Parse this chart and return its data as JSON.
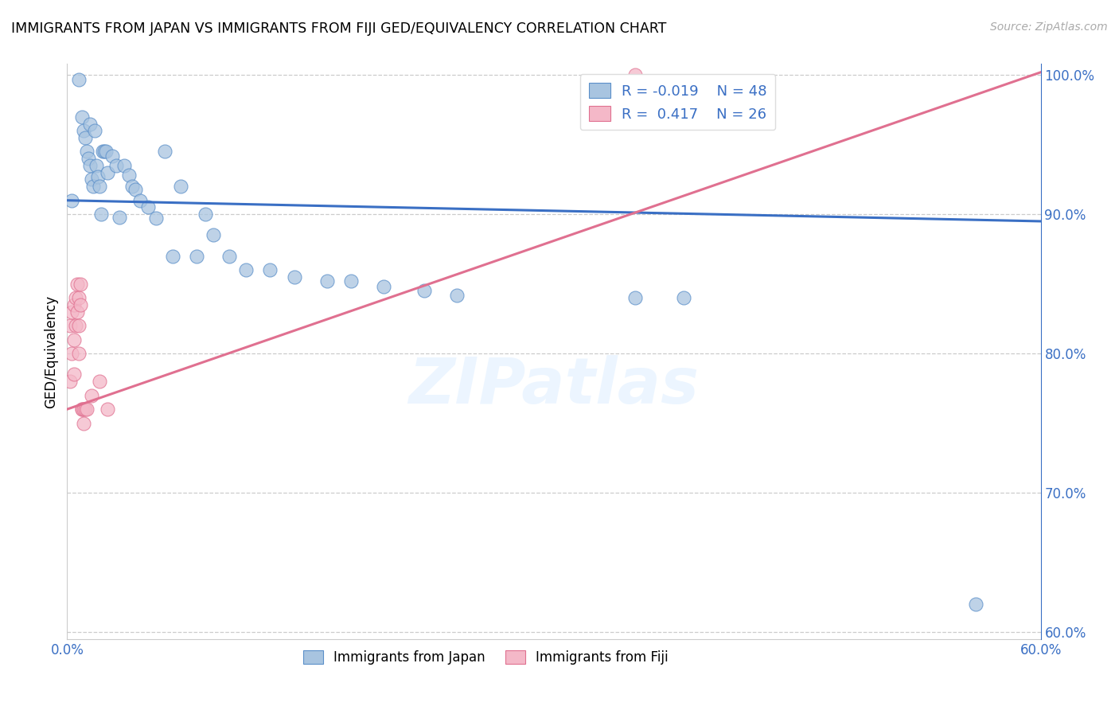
{
  "title": "IMMIGRANTS FROM JAPAN VS IMMIGRANTS FROM FIJI GED/EQUIVALENCY CORRELATION CHART",
  "source": "Source: ZipAtlas.com",
  "ylabel": "GED/Equivalency",
  "xlim": [
    0.0,
    0.6
  ],
  "ylim": [
    0.595,
    1.008
  ],
  "yticks_right": [
    0.6,
    0.7,
    0.8,
    0.9,
    1.0
  ],
  "ytick_right_labels": [
    "60.0%",
    "70.0%",
    "80.0%",
    "90.0%",
    "100.0%"
  ],
  "legend_R_japan": "-0.019",
  "legend_N_japan": "48",
  "legend_R_fiji": "0.417",
  "legend_N_fiji": "26",
  "japan_color": "#a8c4e0",
  "fiji_color": "#f4b8c8",
  "japan_edge_color": "#5b8fc9",
  "fiji_edge_color": "#e07090",
  "japan_line_color": "#3a6fc4",
  "fiji_line_color": "#e07090",
  "watermark": "ZIPatlas",
  "blue_dot_x": [
    0.003,
    0.007,
    0.009,
    0.01,
    0.011,
    0.012,
    0.013,
    0.014,
    0.014,
    0.015,
    0.016,
    0.017,
    0.018,
    0.019,
    0.02,
    0.021,
    0.022,
    0.023,
    0.024,
    0.025,
    0.028,
    0.03,
    0.032,
    0.035,
    0.038,
    0.04,
    0.042,
    0.045,
    0.05,
    0.055,
    0.06,
    0.065,
    0.07,
    0.08,
    0.085,
    0.09,
    0.1,
    0.11,
    0.125,
    0.14,
    0.16,
    0.175,
    0.195,
    0.22,
    0.24,
    0.35,
    0.38,
    0.56
  ],
  "blue_dot_y": [
    0.91,
    0.997,
    0.97,
    0.96,
    0.955,
    0.945,
    0.94,
    0.935,
    0.965,
    0.925,
    0.92,
    0.96,
    0.935,
    0.927,
    0.92,
    0.9,
    0.945,
    0.945,
    0.945,
    0.93,
    0.942,
    0.935,
    0.898,
    0.935,
    0.928,
    0.92,
    0.918,
    0.91,
    0.905,
    0.897,
    0.945,
    0.87,
    0.92,
    0.87,
    0.9,
    0.885,
    0.87,
    0.86,
    0.86,
    0.855,
    0.852,
    0.852,
    0.848,
    0.845,
    0.842,
    0.84,
    0.84,
    0.62
  ],
  "pink_dot_x": [
    0.002,
    0.002,
    0.003,
    0.003,
    0.004,
    0.004,
    0.004,
    0.005,
    0.005,
    0.006,
    0.006,
    0.007,
    0.007,
    0.007,
    0.008,
    0.008,
    0.009,
    0.009,
    0.01,
    0.01,
    0.011,
    0.012,
    0.015,
    0.02,
    0.025,
    0.35
  ],
  "pink_dot_y": [
    0.82,
    0.78,
    0.83,
    0.8,
    0.835,
    0.81,
    0.785,
    0.84,
    0.82,
    0.85,
    0.83,
    0.84,
    0.82,
    0.8,
    0.85,
    0.835,
    0.76,
    0.76,
    0.76,
    0.75,
    0.76,
    0.76,
    0.77,
    0.78,
    0.76,
    1.0
  ],
  "blue_trend_x": [
    0.0,
    0.6
  ],
  "blue_trend_y": [
    0.91,
    0.895
  ],
  "pink_trend_x": [
    0.0,
    0.6
  ],
  "pink_trend_y": [
    0.76,
    1.002
  ]
}
